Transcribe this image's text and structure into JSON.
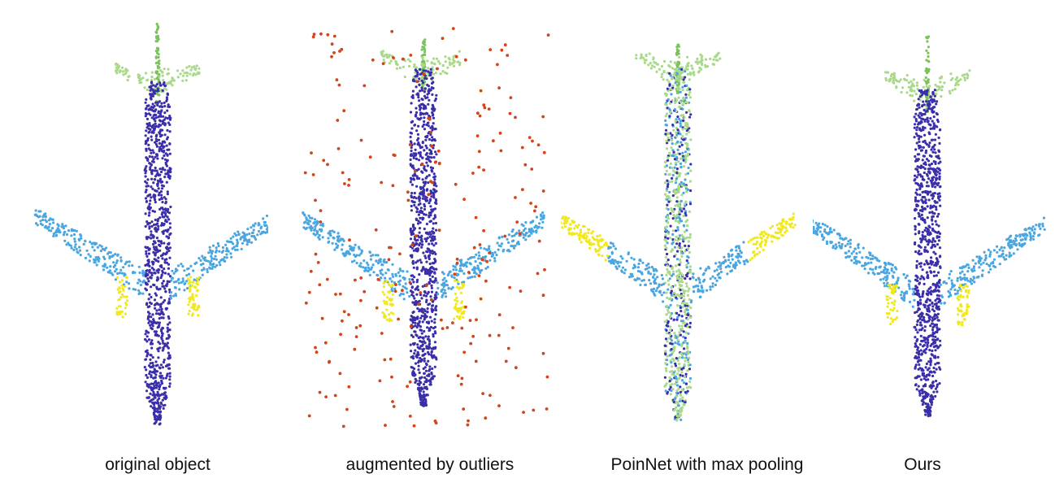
{
  "panels": [
    {
      "caption": "original object",
      "mode": "original"
    },
    {
      "caption": "augmented by outliers",
      "mode": "outliers"
    },
    {
      "caption": "PoinNet with max pooling",
      "mode": "pointnet"
    },
    {
      "caption": "Ours",
      "mode": "ours"
    }
  ],
  "colors": {
    "fuselage": "#3a2fa8",
    "wing": "#4aa6e0",
    "engine": "#f2e81e",
    "tail": "#7ac25a",
    "tail_light": "#a9d98a",
    "outlier": "#d2441a"
  }
}
